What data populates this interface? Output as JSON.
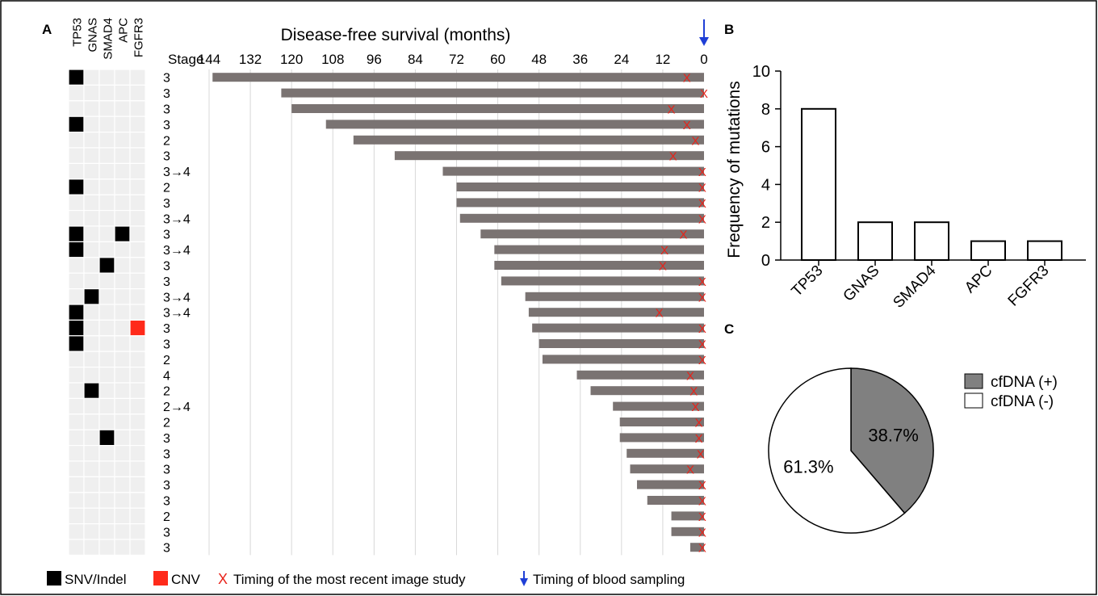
{
  "panels": {
    "a": "A",
    "b": "B",
    "c": "C"
  },
  "colors": {
    "bar": "#7a7372",
    "grid_cell": "#efefef",
    "snv": "#000000",
    "cnv": "#ff2a1a",
    "image_study_marker": "#e8231a",
    "blood_arrow": "#1f3fd6",
    "gridline": "#d8d8d8",
    "pie_positive": "#808080",
    "pie_negative": "#ffffff"
  },
  "chart_data": [
    {
      "type": "bar",
      "orientation": "horizontal",
      "title": "Disease-free survival (months)",
      "x_reversed": true,
      "xlim": [
        0,
        144
      ],
      "xticks": [
        144,
        132,
        120,
        108,
        96,
        84,
        72,
        60,
        48,
        36,
        24,
        12,
        0
      ],
      "stage_header": "Stage",
      "genes": [
        "TP53",
        "GNAS",
        "SMAD4",
        "APC",
        "FGFR3"
      ],
      "patients": [
        {
          "stage": "3",
          "dfs": 143,
          "image_study": 5,
          "mutations": {
            "TP53": "SNV"
          }
        },
        {
          "stage": "3",
          "dfs": 123,
          "image_study": 0,
          "mutations": {}
        },
        {
          "stage": "3",
          "dfs": 120,
          "image_study": 9.5,
          "mutations": {}
        },
        {
          "stage": "3",
          "dfs": 110,
          "image_study": 5,
          "mutations": {
            "TP53": "SNV"
          }
        },
        {
          "stage": "2",
          "dfs": 102,
          "image_study": 2.5,
          "mutations": {}
        },
        {
          "stage": "3",
          "dfs": 90,
          "image_study": 9,
          "mutations": {}
        },
        {
          "stage": "3→4",
          "dfs": 76,
          "image_study": 0.5,
          "mutations": {}
        },
        {
          "stage": "2",
          "dfs": 72,
          "image_study": 0.5,
          "mutations": {
            "TP53": "SNV"
          }
        },
        {
          "stage": "3",
          "dfs": 72,
          "image_study": 0.5,
          "mutations": {}
        },
        {
          "stage": "3→4",
          "dfs": 71,
          "image_study": 0.5,
          "mutations": {}
        },
        {
          "stage": "3",
          "dfs": 65,
          "image_study": 6,
          "mutations": {
            "TP53": "SNV",
            "APC": "SNV"
          }
        },
        {
          "stage": "3→4",
          "dfs": 61,
          "image_study": 11.5,
          "mutations": {
            "TP53": "SNV"
          }
        },
        {
          "stage": "3",
          "dfs": 61,
          "image_study": 12,
          "mutations": {
            "SMAD4": "SNV"
          }
        },
        {
          "stage": "3",
          "dfs": 59,
          "image_study": 0.5,
          "mutations": {}
        },
        {
          "stage": "3→4",
          "dfs": 52,
          "image_study": 0.5,
          "mutations": {
            "GNAS": "SNV"
          }
        },
        {
          "stage": "3→4",
          "dfs": 51,
          "image_study": 13,
          "mutations": {
            "TP53": "SNV"
          }
        },
        {
          "stage": "3",
          "dfs": 50,
          "image_study": 0.5,
          "mutations": {
            "TP53": "SNV",
            "FGFR3": "CNV"
          }
        },
        {
          "stage": "3",
          "dfs": 48,
          "image_study": 0.5,
          "mutations": {
            "TP53": "SNV"
          }
        },
        {
          "stage": "2",
          "dfs": 47,
          "image_study": 0.5,
          "mutations": {}
        },
        {
          "stage": "4",
          "dfs": 37,
          "image_study": 4,
          "mutations": {}
        },
        {
          "stage": "2",
          "dfs": 33,
          "image_study": 3,
          "mutations": {
            "GNAS": "SNV"
          }
        },
        {
          "stage": "2→4",
          "dfs": 26.5,
          "image_study": 2.5,
          "mutations": {}
        },
        {
          "stage": "2",
          "dfs": 24.5,
          "image_study": 1.5,
          "mutations": {}
        },
        {
          "stage": "3",
          "dfs": 24.5,
          "image_study": 1.5,
          "mutations": {
            "SMAD4": "SNV"
          }
        },
        {
          "stage": "3",
          "dfs": 22.5,
          "image_study": 1,
          "mutations": {}
        },
        {
          "stage": "3",
          "dfs": 21.5,
          "image_study": 4,
          "mutations": {}
        },
        {
          "stage": "3",
          "dfs": 19.5,
          "image_study": 0.5,
          "mutations": {}
        },
        {
          "stage": "3",
          "dfs": 16.5,
          "image_study": 0.5,
          "mutations": {}
        },
        {
          "stage": "2",
          "dfs": 9.5,
          "image_study": 0.5,
          "mutations": {}
        },
        {
          "stage": "3",
          "dfs": 9.5,
          "image_study": 0.5,
          "mutations": {}
        },
        {
          "stage": "3",
          "dfs": 4,
          "image_study": 0.5,
          "mutations": {}
        }
      ],
      "legend": [
        {
          "key": "snv",
          "label": "SNV/Indel"
        },
        {
          "key": "cnv",
          "label": "CNV"
        },
        {
          "key": "image_study",
          "label": "Timing of the most recent image study"
        },
        {
          "key": "blood",
          "label": "Timing of blood sampling"
        }
      ]
    },
    {
      "type": "bar",
      "categories": [
        "TP53",
        "GNAS",
        "SMAD4",
        "APC",
        "FGFR3"
      ],
      "values": [
        8,
        2,
        2,
        1,
        1
      ],
      "ylabel": "Frequency of mutations",
      "ylim": [
        0,
        10
      ],
      "yticks": [
        0,
        2,
        4,
        6,
        8,
        10
      ]
    },
    {
      "type": "pie",
      "slices": [
        {
          "label": "cfDNA (+)",
          "value": 38.7,
          "display": "38.7%"
        },
        {
          "label": "cfDNA (-)",
          "value": 61.3,
          "display": "61.3%"
        }
      ],
      "legend_position": "right"
    }
  ]
}
